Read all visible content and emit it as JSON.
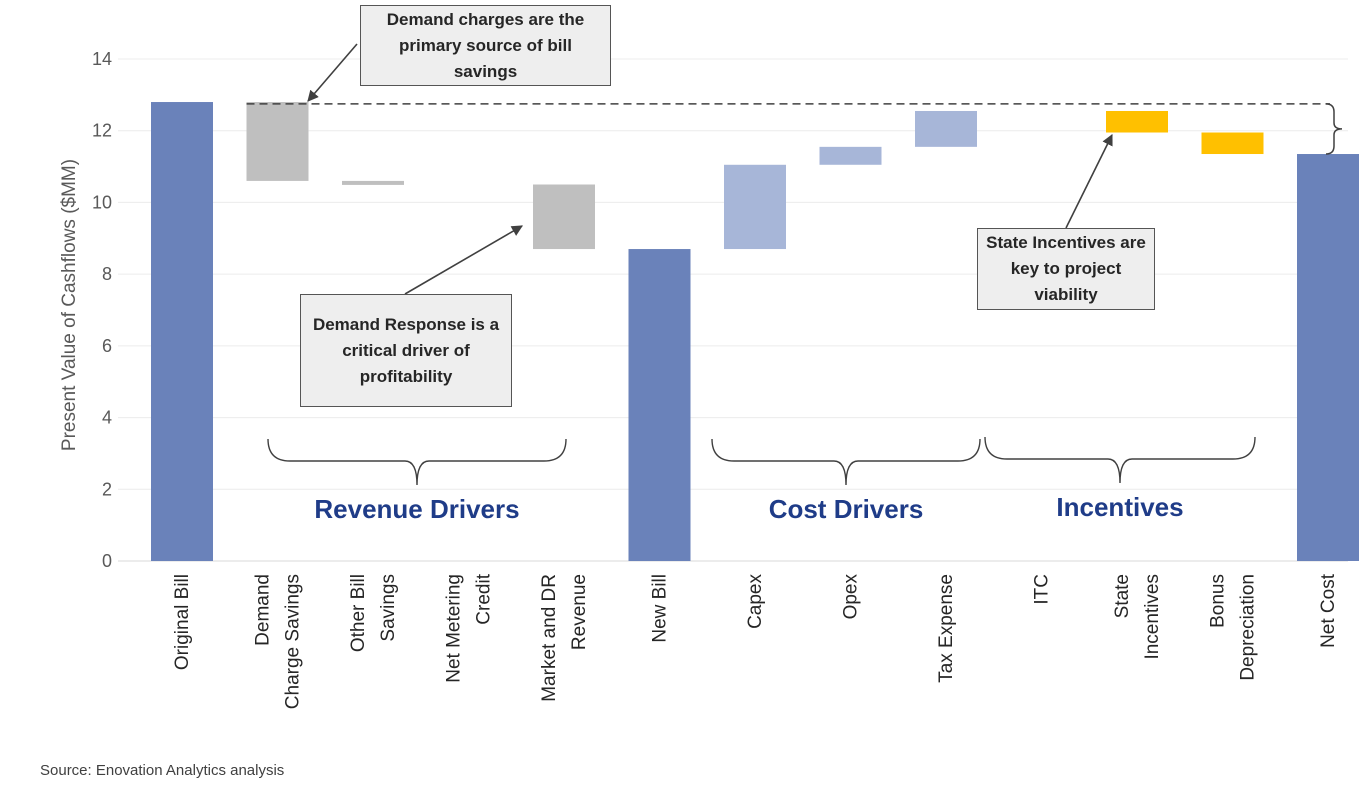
{
  "chart_data": {
    "type": "waterfall",
    "title": "",
    "ylabel": "Present Value of Cashflows ($MM)",
    "ylim": [
      0,
      14
    ],
    "yticks": [
      0,
      2,
      4,
      6,
      8,
      10,
      12,
      14
    ],
    "grid": true,
    "bars": [
      {
        "label": "Original Bill",
        "lines": [
          "Original Bill"
        ],
        "low": 0,
        "high": 12.8,
        "kind": "total"
      },
      {
        "label": "Demand Charge Savings",
        "lines": [
          "Demand",
          "Charge Savings"
        ],
        "low": 10.6,
        "high": 12.8,
        "kind": "revenue"
      },
      {
        "label": "Other Bill Savings",
        "lines": [
          "Other Bill",
          "Savings"
        ],
        "low": 10.5,
        "high": 10.6,
        "kind": "revenue"
      },
      {
        "label": "Net Metering Credit",
        "lines": [
          "Net Metering",
          "Credit"
        ],
        "low": 10.5,
        "high": 10.5,
        "kind": "revenue"
      },
      {
        "label": "Market and DR Revenue",
        "lines": [
          "Market and DR",
          "Revenue"
        ],
        "low": 8.7,
        "high": 10.5,
        "kind": "revenue"
      },
      {
        "label": "New Bill",
        "lines": [
          "New Bill"
        ],
        "low": 0,
        "high": 8.7,
        "kind": "total"
      },
      {
        "label": "Capex",
        "lines": [
          "Capex"
        ],
        "low": 8.7,
        "high": 11.05,
        "kind": "cost"
      },
      {
        "label": "Opex",
        "lines": [
          "Opex"
        ],
        "low": 11.05,
        "high": 11.55,
        "kind": "cost"
      },
      {
        "label": "Tax Expense",
        "lines": [
          "Tax Expense"
        ],
        "low": 11.55,
        "high": 12.55,
        "kind": "cost"
      },
      {
        "label": "ITC",
        "lines": [
          "ITC"
        ],
        "low": 12.55,
        "high": 12.55,
        "kind": "incentive"
      },
      {
        "label": "State Incentives",
        "lines": [
          "State",
          "Incentives"
        ],
        "low": 11.95,
        "high": 12.55,
        "kind": "incentive"
      },
      {
        "label": "Bonus Depreciation",
        "lines": [
          "Bonus",
          "Depreciation"
        ],
        "low": 11.35,
        "high": 11.95,
        "kind": "incentive"
      },
      {
        "label": "Net Cost",
        "lines": [
          "Net Cost"
        ],
        "low": 0,
        "high": 11.35,
        "kind": "total"
      }
    ],
    "colors": {
      "total": "#6A82BA",
      "revenue": "#BFBFBF",
      "cost": "#A7B6D8",
      "incentive": "#FFC000"
    },
    "groups": [
      {
        "label": "Revenue Drivers",
        "from": 1,
        "to": 4
      },
      {
        "label": "Cost Drivers",
        "from": 6,
        "to": 8
      },
      {
        "label": "Incentives",
        "from": 9,
        "to": 11
      }
    ],
    "dashed_reference": 12.75,
    "annotations": [
      {
        "text": "Demand charges are the primary source of bill savings"
      },
      {
        "text": "Demand Response is a critical driver of profitability"
      },
      {
        "text": "State Incentives are key to project viability"
      }
    ]
  },
  "source": "Source: Enovation Analytics analysis"
}
